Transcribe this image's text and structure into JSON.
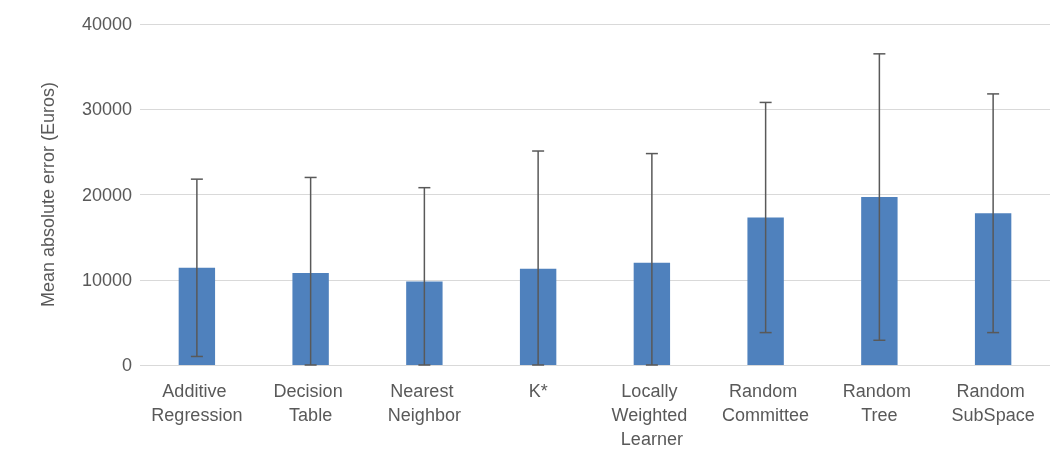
{
  "chart_data": {
    "type": "bar",
    "ylabel": "Mean absolute error (Euros)",
    "categories": [
      "Additive Regression",
      "Decision Table",
      "Nearest Neighbor",
      "K*",
      "Locally Weighted Learner",
      "Random Committee",
      "Random Tree",
      "Random SubSpace"
    ],
    "values": [
      11400,
      10800,
      9800,
      11300,
      12000,
      17300,
      19700,
      17800
    ],
    "errors": [
      10400,
      [
        0,
        22000
      ],
      [
        0,
        20800
      ],
      [
        0,
        25100
      ],
      [
        0,
        24800
      ],
      13500,
      16800,
      14000
    ],
    "color": "#4f81bd",
    "ylim": [
      0,
      40000
    ],
    "yticks": [
      0,
      10000,
      20000,
      30000,
      40000
    ],
    "grid": "y"
  }
}
